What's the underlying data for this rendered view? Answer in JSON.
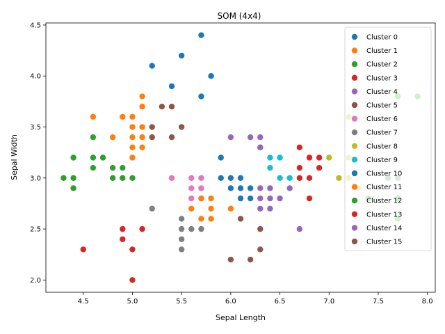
{
  "chart_data": {
    "type": "scatter",
    "title": "SOM (4x4)",
    "xlabel": "Sepal Length",
    "ylabel": "Sepal Width",
    "xlim": [
      4.12,
      8.08
    ],
    "ylim": [
      1.88,
      4.52
    ],
    "xticks": [
      4.5,
      5.0,
      5.5,
      6.0,
      6.5,
      7.0,
      7.5,
      8.0
    ],
    "xtick_labels": [
      "4.5",
      "5.0",
      "5.5",
      "6.0",
      "6.5",
      "7.0",
      "7.5",
      "8.0"
    ],
    "yticks": [
      2.0,
      2.5,
      3.0,
      3.5,
      4.0,
      4.5
    ],
    "ytick_labels": [
      "2.0",
      "2.5",
      "3.0",
      "3.5",
      "4.0",
      "4.5"
    ],
    "grid": false,
    "legend_position": "upper right",
    "series": [
      {
        "name": "Cluster 0",
        "color": "#1f77b4",
        "points": [
          [
            5.7,
            4.4
          ],
          [
            5.5,
            4.2
          ],
          [
            5.2,
            4.1
          ],
          [
            5.8,
            4.0
          ],
          [
            5.4,
            3.9
          ],
          [
            5.7,
            3.8
          ],
          [
            5.9,
            3.2
          ],
          [
            5.9,
            3.0
          ]
        ]
      },
      {
        "name": "Cluster 1",
        "color": "#ff7f0e",
        "points": [
          [
            5.1,
            3.8
          ],
          [
            5.1,
            3.7
          ],
          [
            4.6,
            3.6
          ],
          [
            4.9,
            3.6
          ],
          [
            5.0,
            3.6
          ],
          [
            5.0,
            3.5
          ],
          [
            5.1,
            3.5
          ],
          [
            4.8,
            3.4
          ],
          [
            5.0,
            3.4
          ],
          [
            5.1,
            3.4
          ],
          [
            5.0,
            3.3
          ],
          [
            5.1,
            3.3
          ],
          [
            5.0,
            3.2
          ]
        ]
      },
      {
        "name": "Cluster 2",
        "color": "#2ca02c",
        "points": [
          [
            4.6,
            3.4
          ],
          [
            4.4,
            3.2
          ],
          [
            4.6,
            3.2
          ],
          [
            4.7,
            3.2
          ],
          [
            4.6,
            3.1
          ],
          [
            4.8,
            3.1
          ],
          [
            4.9,
            3.1
          ],
          [
            4.3,
            3.0
          ],
          [
            4.4,
            3.0
          ],
          [
            4.8,
            3.0
          ],
          [
            4.9,
            3.0
          ],
          [
            5.0,
            3.0
          ],
          [
            4.4,
            2.9
          ]
        ]
      },
      {
        "name": "Cluster 3",
        "color": "#d62728",
        "points": [
          [
            6.7,
            3.3
          ],
          [
            6.8,
            3.2
          ],
          [
            6.9,
            3.2
          ],
          [
            6.7,
            3.1
          ],
          [
            6.9,
            3.1
          ],
          [
            6.7,
            3.0
          ],
          [
            6.8,
            3.0
          ],
          [
            6.8,
            2.8
          ]
        ]
      },
      {
        "name": "Cluster 4",
        "color": "#9467bd",
        "points": [
          [
            6.0,
            3.4
          ],
          [
            6.2,
            3.4
          ],
          [
            6.3,
            3.4
          ],
          [
            6.3,
            3.3
          ],
          [
            6.3,
            2.9
          ],
          [
            6.4,
            2.9
          ],
          [
            6.6,
            2.9
          ],
          [
            6.3,
            2.8
          ],
          [
            6.4,
            2.8
          ],
          [
            6.5,
            2.8
          ],
          [
            6.3,
            2.7
          ],
          [
            6.4,
            2.7
          ],
          [
            6.7,
            2.5
          ]
        ]
      },
      {
        "name": "Cluster 5",
        "color": "#8c564b",
        "points": [
          [
            5.3,
            3.7
          ],
          [
            5.4,
            3.7
          ],
          [
            5.2,
            3.5
          ],
          [
            5.5,
            3.5
          ],
          [
            5.2,
            3.4
          ],
          [
            5.4,
            3.4
          ]
        ]
      },
      {
        "name": "Cluster 6",
        "color": "#e377c2",
        "points": [
          [
            5.4,
            3.0
          ],
          [
            5.6,
            3.0
          ],
          [
            5.7,
            3.0
          ],
          [
            5.6,
            2.9
          ],
          [
            5.7,
            2.9
          ],
          [
            5.6,
            2.8
          ],
          [
            5.7,
            2.8
          ]
        ]
      },
      {
        "name": "Cluster 7",
        "color": "#7f7f7f",
        "points": [
          [
            5.2,
            2.7
          ],
          [
            5.5,
            2.6
          ],
          [
            5.5,
            2.5
          ],
          [
            5.6,
            2.5
          ],
          [
            5.7,
            2.5
          ],
          [
            5.5,
            2.4
          ],
          [
            5.5,
            2.3
          ]
        ]
      },
      {
        "name": "Cluster 8",
        "color": "#bcbd22",
        "points": [
          [
            7.2,
            3.6
          ],
          [
            7.0,
            3.2
          ],
          [
            7.2,
            3.2
          ],
          [
            7.1,
            3.0
          ],
          [
            7.2,
            3.0
          ],
          [
            7.3,
            2.9
          ]
        ]
      },
      {
        "name": "Cluster 9",
        "color": "#17becf",
        "points": [
          [
            6.4,
            3.2
          ],
          [
            6.5,
            3.2
          ],
          [
            6.4,
            3.1
          ],
          [
            6.5,
            3.0
          ],
          [
            6.6,
            3.0
          ]
        ]
      },
      {
        "name": "Cluster 10",
        "color": "#1f77b4",
        "points": [
          [
            6.0,
            3.0
          ],
          [
            6.1,
            3.0
          ],
          [
            6.0,
            2.9
          ],
          [
            6.1,
            2.9
          ],
          [
            6.2,
            2.9
          ],
          [
            6.1,
            2.8
          ],
          [
            6.2,
            2.8
          ]
        ]
      },
      {
        "name": "Cluster 11",
        "color": "#ff7f0e",
        "points": [
          [
            5.7,
            2.8
          ],
          [
            5.8,
            2.8
          ],
          [
            5.6,
            2.7
          ],
          [
            5.8,
            2.7
          ],
          [
            6.0,
            2.7
          ],
          [
            5.7,
            2.6
          ],
          [
            5.8,
            2.6
          ]
        ]
      },
      {
        "name": "Cluster 12",
        "color": "#2ca02c",
        "points": [
          [
            7.9,
            3.8
          ],
          [
            7.7,
            3.8
          ],
          [
            7.6,
            3.0
          ],
          [
            7.7,
            3.0
          ],
          [
            7.4,
            2.8
          ],
          [
            7.7,
            2.8
          ],
          [
            7.7,
            2.6
          ]
        ]
      },
      {
        "name": "Cluster 13",
        "color": "#d62728",
        "points": [
          [
            4.9,
            2.5
          ],
          [
            5.1,
            2.5
          ],
          [
            4.9,
            2.4
          ],
          [
            4.5,
            2.3
          ],
          [
            5.0,
            2.3
          ],
          [
            5.0,
            2.0
          ]
        ]
      },
      {
        "name": "Cluster 14",
        "color": "#9467bd",
        "points": [
          [
            6.3,
            3.3
          ]
        ]
      },
      {
        "name": "Cluster 15",
        "color": "#8c564b",
        "points": [
          [
            6.1,
            2.6
          ],
          [
            6.3,
            2.5
          ],
          [
            6.3,
            2.3
          ],
          [
            6.0,
            2.2
          ],
          [
            6.2,
            2.2
          ]
        ]
      }
    ]
  }
}
